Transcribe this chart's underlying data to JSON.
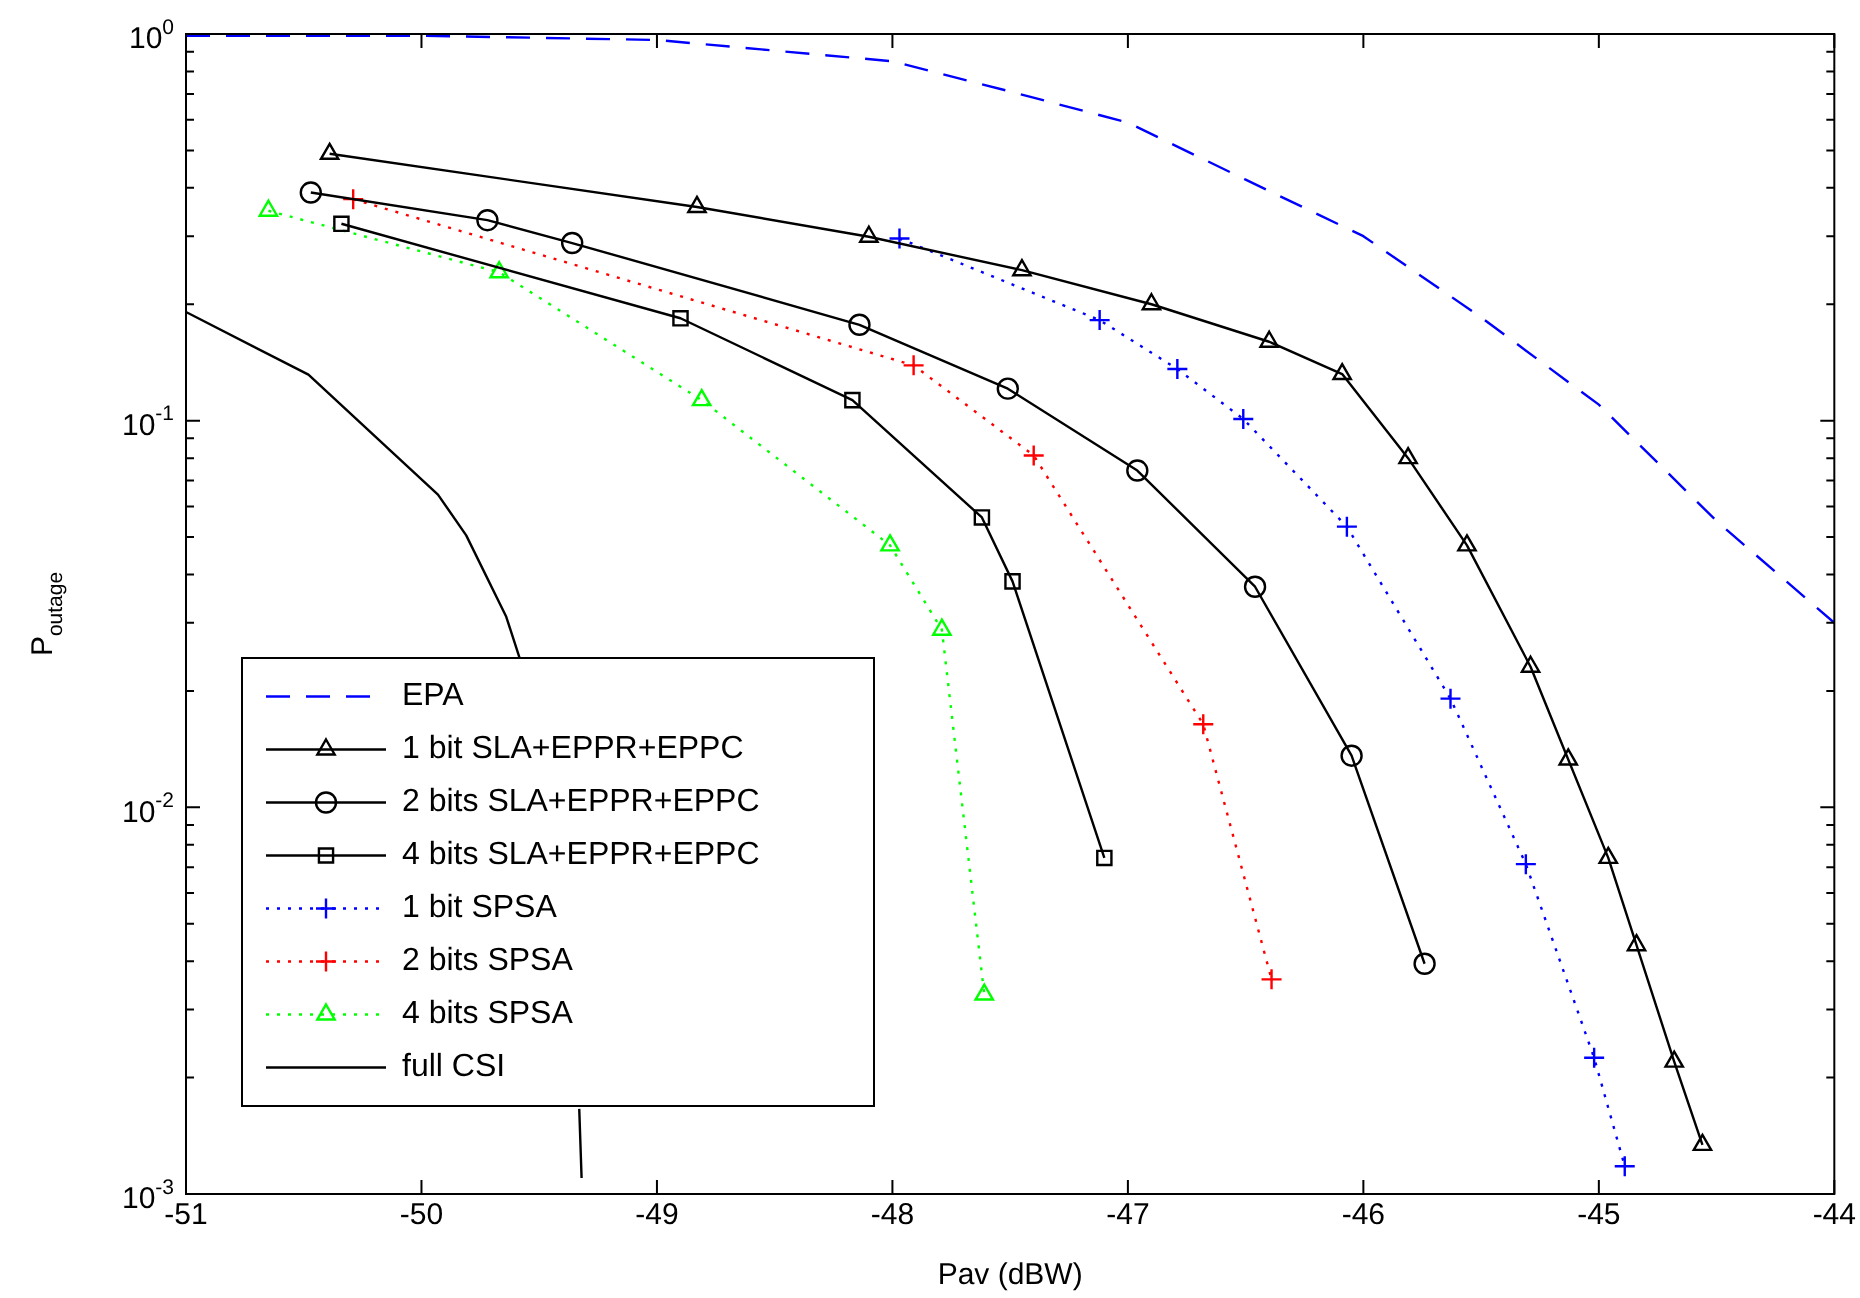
{
  "chart_data": {
    "type": "line",
    "xlabel": "Pav (dBW)",
    "ylabel": "P$_{outage}$",
    "log": "y",
    "legend": "bottom left",
    "grid": false,
    "xlim": [
      -51,
      -44
    ],
    "xticks": [
      -51,
      -50,
      -49,
      -48,
      -47,
      -46,
      -45,
      -44
    ],
    "ylim": [
      0.001,
      1
    ],
    "yticks": [
      {
        "value": 0.001,
        "label": "10$^{-3}$"
      },
      {
        "value": 0.002,
        "label": null
      },
      {
        "value": 0.003,
        "label": null
      },
      {
        "value": 0.004,
        "label": null
      },
      {
        "value": 0.005,
        "label": null
      },
      {
        "value": 0.006,
        "label": null
      },
      {
        "value": 0.007,
        "label": null
      },
      {
        "value": 0.008,
        "label": null
      },
      {
        "value": 0.009,
        "label": null
      },
      {
        "value": 0.01,
        "label": "10$^{-2}$"
      },
      {
        "value": 0.02,
        "label": null
      },
      {
        "value": 0.03,
        "label": null
      },
      {
        "value": 0.04,
        "label": null
      },
      {
        "value": 0.05,
        "label": null
      },
      {
        "value": 0.06,
        "label": null
      },
      {
        "value": 0.07,
        "label": null
      },
      {
        "value": 0.08,
        "label": null
      },
      {
        "value": 0.09,
        "label": null
      },
      {
        "value": 0.1,
        "label": "10$^{-1}$"
      },
      {
        "value": 0.2,
        "label": null
      },
      {
        "value": 0.3,
        "label": null
      },
      {
        "value": 0.4,
        "label": null
      },
      {
        "value": 0.5,
        "label": null
      },
      {
        "value": 0.6,
        "label": null
      },
      {
        "value": 0.7,
        "label": null
      },
      {
        "value": 0.8,
        "label": null
      },
      {
        "value": 0.9,
        "label": null
      },
      {
        "value": 1,
        "label": "10$^{0}$"
      }
    ],
    "series": [
      {
        "name": "EPA",
        "color": "#0000ff",
        "line_style": "dashed",
        "marker": "none",
        "x": [
          -51,
          -50,
          -49,
          -48,
          -47.5,
          -47,
          -46.5,
          -46,
          -45.5,
          -45,
          -44.5,
          -44
        ],
        "values": [
          0.99,
          0.99,
          0.965,
          0.85,
          0.71,
          0.59,
          0.42,
          0.3,
          0.185,
          0.11,
          0.055,
          0.03
        ]
      },
      {
        "name": "1 bit SLA+EPPR+EPPC",
        "color": "#000000",
        "line_style": "solid",
        "marker": "triangle",
        "x": [
          -50.39,
          -48.83,
          -48.1,
          -47.45,
          -46.9,
          -46.4,
          -46.09,
          -45.81,
          -45.56,
          -45.29,
          -45.13,
          -44.96,
          -44.84,
          -44.68,
          -44.56
        ],
        "values": [
          0.49,
          0.357,
          0.299,
          0.245,
          0.2,
          0.16,
          0.132,
          0.08,
          0.0476,
          0.0231,
          0.0133,
          0.0074,
          0.0044,
          0.0022,
          0.00134
        ]
      },
      {
        "name": "2 bits SLA+EPPR+EPPC",
        "color": "#000000",
        "line_style": "solid",
        "marker": "circle",
        "x": [
          -50.47,
          -49.72,
          -49.36,
          -48.14,
          -47.51,
          -46.96,
          -46.46,
          -46.05,
          -45.74
        ],
        "values": [
          0.389,
          0.33,
          0.288,
          0.177,
          0.121,
          0.0743,
          0.0372,
          0.0136,
          0.00394
        ]
      },
      {
        "name": "4 bits SLA+EPPR+EPPC",
        "color": "#000000",
        "line_style": "solid",
        "marker": "square",
        "x": [
          -50.34,
          -48.9,
          -48.17,
          -47.62,
          -47.49,
          -47.1
        ],
        "values": [
          0.323,
          0.184,
          0.113,
          0.0562,
          0.0384,
          0.0074
        ]
      },
      {
        "name": "1 bit SPSA",
        "color": "#0000ff",
        "line_style": "dotted",
        "marker": "cross",
        "x": [
          -47.97,
          -47.12,
          -46.79,
          -46.51,
          -46.07,
          -45.63,
          -45.31,
          -45.02,
          -44.89
        ],
        "values": [
          0.296,
          0.182,
          0.136,
          0.101,
          0.0532,
          0.0191,
          0.00713,
          0.00225,
          0.00118
        ]
      },
      {
        "name": "2 bits SPSA",
        "color": "#ff0000",
        "line_style": "dotted",
        "marker": "cross",
        "x": [
          -50.29,
          -47.91,
          -47.4,
          -46.68,
          -46.39
        ],
        "values": [
          0.374,
          0.139,
          0.0813,
          0.0164,
          0.00359
        ]
      },
      {
        "name": "4 bits SPSA",
        "color": "#00ff00",
        "line_style": "dotted",
        "marker": "triangle",
        "x": [
          -50.65,
          -49.67,
          -48.81,
          -48.01,
          -47.79,
          -47.61
        ],
        "values": [
          0.349,
          0.242,
          0.113,
          0.0476,
          0.0288,
          0.00328
        ]
      },
      {
        "name": "full CSI",
        "color": "#000000",
        "line_style": "solid",
        "marker": "none",
        "x": [
          -51,
          -50.48,
          -49.93,
          -49.81,
          -49.64,
          -49.58,
          -49.54,
          -49.33,
          -49.32
        ],
        "values": [
          0.191,
          0.1315,
          0.0644,
          0.0505,
          0.0311,
          0.024,
          null,
          0.00166,
          0.0011
        ]
      }
    ]
  }
}
